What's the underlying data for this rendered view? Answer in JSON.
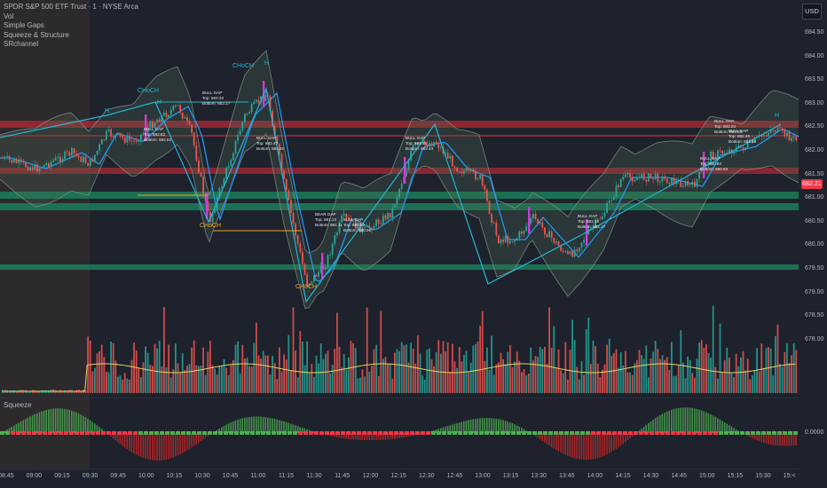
{
  "chart": {
    "title": "SPDR S&P 500 ETF Trust · 1 · NYSE Arca",
    "currency": "USD",
    "current_price": "682.21",
    "indicators": [
      "Vol",
      "Simple Gaps",
      "Squeeze & Structure",
      "SRchannel"
    ],
    "squeeze_label": "Squeeze",
    "squeeze_value": "0.0000",
    "price_axis": [
      "684.50",
      "684.00",
      "683.50",
      "683.00",
      "682.50",
      "682.00",
      "681.50",
      "681.00",
      "680.50",
      "680.00",
      "679.50",
      "679.00",
      "678.50",
      "678.00"
    ],
    "time_axis": [
      "08:45",
      "09:00",
      "09:15",
      "09:30",
      "09:45",
      "10:00",
      "10:15",
      "10:30",
      "10:45",
      "11:00",
      "11:15",
      "11:30",
      "11:45",
      "12:00",
      "12:15",
      "12:30",
      "12:45",
      "13:00",
      "13:15",
      "13:30",
      "13:45",
      "14:00",
      "14:15",
      "14:30",
      "14:45",
      "15:00",
      "15:15",
      "15:30",
      "15:<"
    ],
    "chart_labels": [
      {
        "id": "choch-1",
        "text": "CHoCH",
        "color": "#22b6d6"
      },
      {
        "id": "choch-2",
        "text": "CHoCH",
        "color": "#22b6d6"
      },
      {
        "id": "choch-3",
        "text": "CHoCH",
        "color": "#f5a623"
      },
      {
        "id": "choch-4",
        "text": "CHoCH",
        "color": "#f5a623"
      },
      {
        "id": "h-1",
        "text": "H",
        "color": "#22b6d6"
      },
      {
        "id": "h-2",
        "text": "H",
        "color": "#22b6d6"
      },
      {
        "id": "h-3",
        "text": "H",
        "color": "#22b6d6"
      },
      {
        "id": "h-4",
        "text": "H",
        "color": "#22b6d6"
      }
    ],
    "gaps": [
      {
        "id": "gap-1",
        "type": "BULL GAP",
        "top": "Top: 682.82",
        "bottom": "Bottom: 682.81"
      },
      {
        "id": "gap-2",
        "type": "BULL GAP",
        "top": "Top: 683.32",
        "bottom": "Bottom: 683.27"
      },
      {
        "id": "gap-3",
        "type": "BULL GAP",
        "top": "Top: 682.47",
        "bottom": "Bottom: 682.40"
      },
      {
        "id": "gap-4",
        "type": "BEAR GAP",
        "top": "Top: 681.13",
        "bottom": "Bottom: 681.11"
      },
      {
        "id": "gap-5",
        "type": "BULL GAP",
        "top": "Top: 680.92",
        "bottom": "Bottom: 680.90"
      },
      {
        "id": "gap-6",
        "type": "BULL GAP",
        "top": "Top: 682.46",
        "bottom": "Bottom: 682.44"
      },
      {
        "id": "gap-7",
        "type": "BULL GAP",
        "top": "Top: 682.19",
        "bottom": "Bottom: 682.17"
      },
      {
        "id": "gap-8",
        "type": "BULL GAP",
        "top": "Top: 680.94",
        "bottom": "Bottom: 680.93"
      },
      {
        "id": "gap-9",
        "type": "BULL GAP",
        "top": "Top: 682.04",
        "bottom": "Bottom: 682.03"
      },
      {
        "id": "gap-10",
        "type": "BULL GAP",
        "top": "Top: 682.45",
        "bottom": "Bottom: 682.44"
      }
    ],
    "colors": {
      "background": "#1e222d",
      "up": "#26a69a",
      "down": "#ef5350",
      "bb_line": "#2196f3",
      "structure": "#22b6d6",
      "resistance": "#b22833",
      "support": "#1b7e5a",
      "squeeze_on": "#f23645",
      "volume_ma": "#e3d462"
    }
  }
}
